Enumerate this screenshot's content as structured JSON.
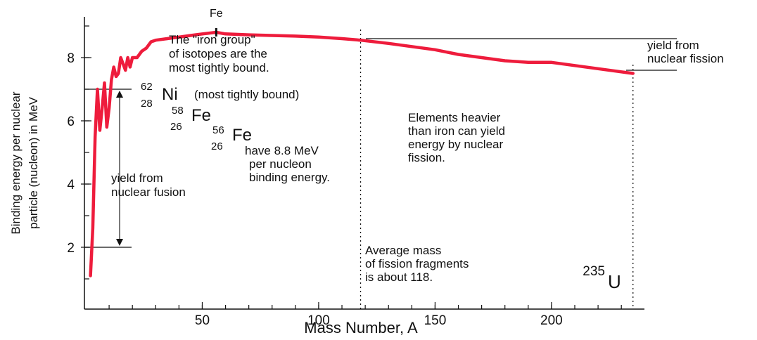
{
  "chart_data": {
    "type": "line",
    "title": "",
    "xlabel": "Mass Number, A",
    "ylabel_lines": [
      "Binding energy per nuclear",
      "particle (nucleon) in MeV"
    ],
    "xlim": [
      0,
      240
    ],
    "ylim": [
      0,
      9.3
    ],
    "x_ticks": [
      50,
      100,
      150,
      200
    ],
    "y_ticks": [
      2,
      4,
      6,
      8
    ],
    "grid": false,
    "line_color": "#ee1c3c",
    "series": [
      {
        "x": [
          2,
          3,
          4,
          5,
          6,
          7,
          8,
          9,
          10,
          11,
          12,
          13,
          14,
          15,
          16,
          17,
          18,
          19,
          20,
          22,
          24,
          26,
          28,
          30,
          35,
          40,
          45,
          50,
          56,
          60,
          70,
          80,
          90,
          100,
          110,
          118,
          130,
          140,
          150,
          160,
          170,
          180,
          190,
          200,
          210,
          220,
          230,
          235
        ],
        "y": [
          1.1,
          2.6,
          5.5,
          7.0,
          5.7,
          6.4,
          7.2,
          5.8,
          6.4,
          7.3,
          7.7,
          7.4,
          7.5,
          8.0,
          7.8,
          7.6,
          8.0,
          7.7,
          8.0,
          8.0,
          8.2,
          8.3,
          8.5,
          8.55,
          8.6,
          8.65,
          8.7,
          8.75,
          8.8,
          8.75,
          8.72,
          8.7,
          8.68,
          8.65,
          8.6,
          8.55,
          8.45,
          8.35,
          8.25,
          8.1,
          8.0,
          7.9,
          7.85,
          7.85,
          7.75,
          7.65,
          7.55,
          7.5
        ]
      }
    ],
    "annotations": {
      "fe_peak_label": "Fe",
      "iron_group": [
        "The \"iron group\"",
        "of isotopes are the",
        "most tightly bound."
      ],
      "ni62": {
        "mass": "62",
        "atomic": "28",
        "symbol": "Ni",
        "note": "(most tightly bound)"
      },
      "fe58": {
        "mass": "58",
        "atomic": "26",
        "symbol": "Fe"
      },
      "fe56": {
        "mass": "56",
        "atomic": "26",
        "symbol": "Fe"
      },
      "fe56_note": [
        "have 8.8 MeV",
        "per nucleon",
        "binding energy."
      ],
      "fusion_label": [
        "yield from",
        "nuclear fusion"
      ],
      "fission_label": [
        "yield from",
        "nuclear fission"
      ],
      "heavier_note": [
        "Elements heavier",
        "than iron can yield",
        "energy by nuclear",
        "fission."
      ],
      "fragments_note": [
        "Average mass",
        "of fission fragments",
        "is about 118."
      ],
      "u235": {
        "mass": "235",
        "symbol": "U"
      },
      "fragment_mass_line": 118,
      "u235_line": 235,
      "fusion_arrow_from": 2,
      "fusion_arrow_to": 7,
      "fission_arrow_from": 7.6,
      "fission_arrow_to": 8.6
    }
  }
}
